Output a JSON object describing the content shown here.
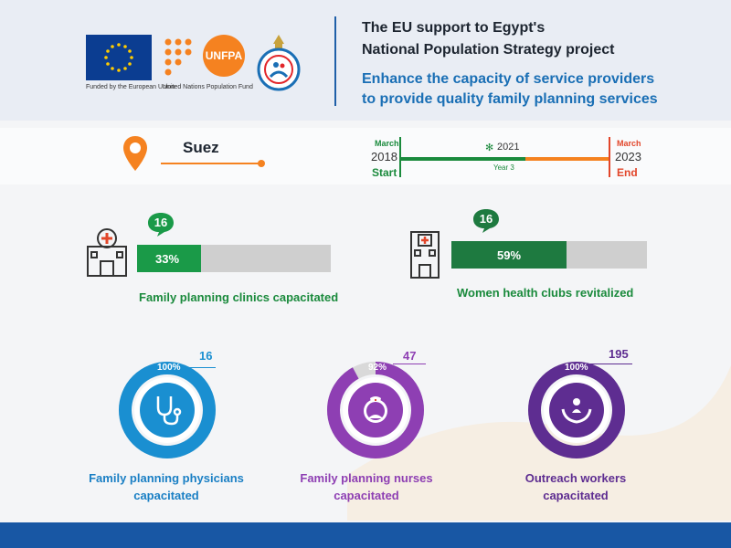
{
  "header": {
    "title_line1": "The EU support to Egypt's",
    "title_line2": "National Population Strategy project",
    "subtitle_line1": "Enhance the capacity of service providers",
    "subtitle_line2": "to provide quality family planning services",
    "eu_caption": "Funded by the European Union",
    "unfpa_caption": "United Nations Population Fund",
    "unfpa_wordmark": "UNFPA"
  },
  "location": {
    "name": "Suez"
  },
  "timeline": {
    "start_month": "March",
    "start_year": "2018",
    "start_label": "Start",
    "current_year": "2021",
    "current_label": "Year 3",
    "end_month": "March",
    "end_year": "2023",
    "end_label": "End",
    "progress_fraction": 0.6
  },
  "bars": [
    {
      "count": "16",
      "percent": "33%",
      "percent_value": 33,
      "label": "Family planning clinics capacitated",
      "color": "#1a9a48"
    },
    {
      "count": "16",
      "percent": "59%",
      "percent_value": 59,
      "label": "Women health clubs revitalized",
      "color": "#1e7a40"
    }
  ],
  "rings": [
    {
      "percent": "100%",
      "percent_value": 100,
      "count": "16",
      "label_line1": "Family planning physicians",
      "label_line2": "capacitated",
      "color": "#1a8fd1",
      "icon": "stethoscope-icon"
    },
    {
      "percent": "92%",
      "percent_value": 92,
      "count": "47",
      "label_line1": "Family planning nurses",
      "label_line2": "capacitated",
      "color": "#8e3fb3",
      "icon": "nurse-icon"
    },
    {
      "percent": "100%",
      "percent_value": 100,
      "count": "195",
      "label_line1": "Outreach workers",
      "label_line2": "capacitated",
      "color": "#5e2d91",
      "icon": "caring-hands-icon"
    }
  ]
}
